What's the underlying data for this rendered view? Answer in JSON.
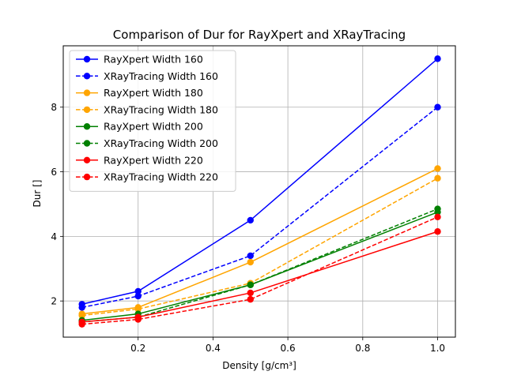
{
  "chart_data": {
    "type": "line",
    "title": "Comparison of Dur for RayXpert and XRayTracing",
    "xlabel": "Density [g/cm³]",
    "ylabel": "Dur []",
    "xlim": [
      0.0,
      1.0475
    ],
    "ylim": [
      0.88,
      9.9
    ],
    "xticks": [
      0.2,
      0.4,
      0.6,
      0.8,
      1.0
    ],
    "xtick_labels": [
      "0.2",
      "0.4",
      "0.6",
      "0.8",
      "1.0"
    ],
    "yticks": [
      2,
      4,
      6,
      8
    ],
    "ytick_labels": [
      "2",
      "4",
      "6",
      "8"
    ],
    "grid": true,
    "legend_position": "top-left",
    "series": [
      {
        "name": "RayXpert Width 160",
        "color": "#0000ff",
        "dashed": false,
        "x": [
          0.05,
          0.2,
          0.5,
          1.0
        ],
        "y": [
          1.9,
          2.3,
          4.5,
          9.5
        ]
      },
      {
        "name": "XRayTracing Width 160",
        "color": "#0000ff",
        "dashed": true,
        "x": [
          0.05,
          0.2,
          0.5,
          1.0
        ],
        "y": [
          1.8,
          2.15,
          3.4,
          8.0
        ]
      },
      {
        "name": "RayXpert Width 180",
        "color": "#ffa500",
        "dashed": false,
        "x": [
          0.05,
          0.2,
          0.5,
          1.0
        ],
        "y": [
          1.6,
          1.8,
          3.2,
          6.1
        ]
      },
      {
        "name": "XRayTracing Width 180",
        "color": "#ffa500",
        "dashed": true,
        "x": [
          0.05,
          0.2,
          0.5,
          1.0
        ],
        "y": [
          1.55,
          1.75,
          2.55,
          5.8
        ]
      },
      {
        "name": "RayXpert Width 200",
        "color": "#008000",
        "dashed": false,
        "x": [
          0.05,
          0.2,
          0.5,
          1.0
        ],
        "y": [
          1.4,
          1.6,
          2.5,
          4.75
        ]
      },
      {
        "name": "XRayTracing Width 200",
        "color": "#008000",
        "dashed": true,
        "x": [
          0.05,
          0.2,
          0.5,
          1.0
        ],
        "y": [
          1.35,
          1.5,
          2.5,
          4.85
        ]
      },
      {
        "name": "RayXpert Width 220",
        "color": "#ff0000",
        "dashed": false,
        "x": [
          0.05,
          0.2,
          0.5,
          1.0
        ],
        "y": [
          1.35,
          1.5,
          2.25,
          4.15
        ]
      },
      {
        "name": "XRayTracing Width 220",
        "color": "#ff0000",
        "dashed": true,
        "x": [
          0.05,
          0.2,
          0.5,
          1.0
        ],
        "y": [
          1.28,
          1.43,
          2.05,
          4.6
        ]
      }
    ]
  }
}
